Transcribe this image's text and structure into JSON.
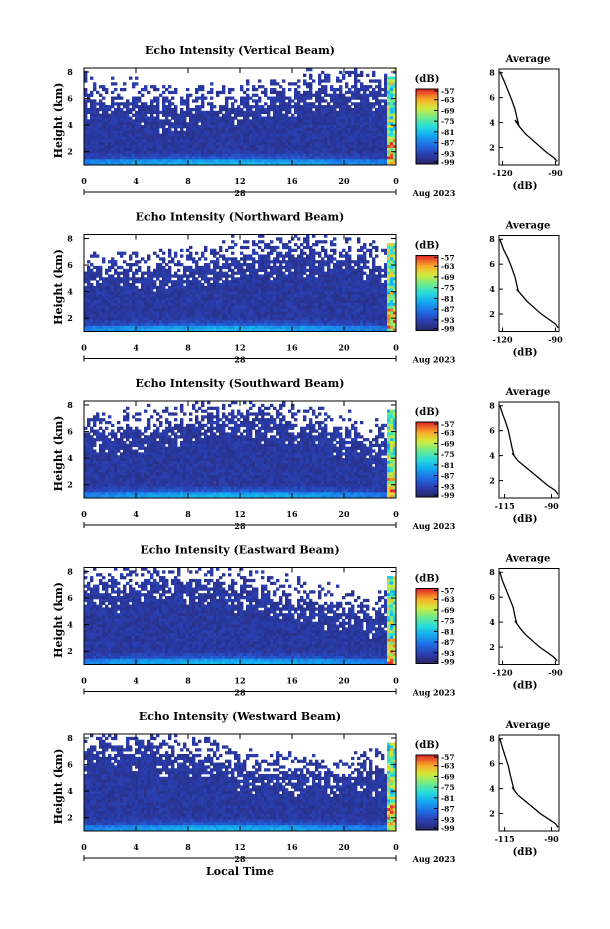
{
  "chart_data": [
    {
      "type": "heatmap",
      "title": "Echo Intensity (Vertical Beam)",
      "ylabel": "Height (km)",
      "y_ticks": [
        "2",
        "4",
        "6",
        "8"
      ],
      "x_ticks": [
        "0",
        "4",
        "8",
        "12",
        "16",
        "20",
        "0"
      ],
      "date_day": "28",
      "date_month": "Aug 2023",
      "colorbar": {
        "unit": "(dB)",
        "ticks": [
          "-57",
          "-63",
          "-69",
          "-75",
          "-81",
          "-87",
          "-93",
          "-99"
        ],
        "range": [
          -99,
          -57
        ]
      },
      "profile": {
        "title": "Average",
        "x_ticks": [
          "-120",
          "-90"
        ],
        "xlabel": "(dB)",
        "y_ticks": [
          "2",
          "4",
          "6",
          "8"
        ],
        "xlim": [
          -122,
          -88
        ],
        "ylim": [
          0.6,
          8.3
        ],
        "points": [
          [
            -121.5,
            8.1
          ],
          [
            -119,
            7.3
          ],
          [
            -117,
            6.6
          ],
          [
            -115,
            5.9
          ],
          [
            -113,
            5.1
          ],
          [
            -112,
            4.5
          ],
          [
            -111,
            3.9
          ],
          [
            -113,
            4.2
          ],
          [
            -110,
            3.6
          ],
          [
            -107,
            3.1
          ],
          [
            -103,
            2.6
          ],
          [
            -99,
            2.1
          ],
          [
            -95,
            1.6
          ],
          [
            -91,
            1.2
          ],
          [
            -89,
            0.9
          ]
        ]
      }
    },
    {
      "type": "heatmap",
      "title": "Echo Intensity (Northward Beam)",
      "ylabel": "Height (km)",
      "y_ticks": [
        "2",
        "4",
        "6",
        "8"
      ],
      "x_ticks": [
        "0",
        "4",
        "8",
        "12",
        "16",
        "20",
        "0"
      ],
      "date_day": "28",
      "date_month": "Aug 2023",
      "colorbar": {
        "unit": "(dB)",
        "ticks": [
          "-57",
          "-63",
          "-69",
          "-75",
          "-81",
          "-87",
          "-93",
          "-99"
        ],
        "range": [
          -99,
          -57
        ]
      },
      "profile": {
        "title": "Average",
        "x_ticks": [
          "-120",
          "-90"
        ],
        "xlabel": "(dB)",
        "y_ticks": [
          "2",
          "4",
          "6",
          "8"
        ],
        "xlim": [
          -122,
          -88
        ],
        "ylim": [
          0.6,
          8.3
        ],
        "points": [
          [
            -121.5,
            8.0
          ],
          [
            -119.5,
            7.2
          ],
          [
            -117,
            6.5
          ],
          [
            -115,
            5.8
          ],
          [
            -113,
            5.0
          ],
          [
            -112,
            4.4
          ],
          [
            -111,
            3.8
          ],
          [
            -112,
            4.0
          ],
          [
            -109,
            3.5
          ],
          [
            -106,
            3.0
          ],
          [
            -102,
            2.5
          ],
          [
            -98,
            2.0
          ],
          [
            -94,
            1.6
          ],
          [
            -90,
            1.2
          ],
          [
            -88.5,
            0.9
          ]
        ]
      }
    },
    {
      "type": "heatmap",
      "title": "Echo Intensity (Southward Beam)",
      "ylabel": "Height (km)",
      "y_ticks": [
        "2",
        "4",
        "6",
        "8"
      ],
      "x_ticks": [
        "0",
        "4",
        "8",
        "12",
        "16",
        "20",
        "0"
      ],
      "date_day": "28",
      "date_month": "Aug 2023",
      "colorbar": {
        "unit": "(dB)",
        "ticks": [
          "-57",
          "-63",
          "-69",
          "-75",
          "-81",
          "-87",
          "-93",
          "-99"
        ],
        "range": [
          -99,
          -57
        ]
      },
      "profile": {
        "title": "Average",
        "x_ticks": [
          "-115",
          "-90"
        ],
        "xlabel": "(dB)",
        "y_ticks": [
          "2",
          "4",
          "6",
          "8"
        ],
        "xlim": [
          -118,
          -86
        ],
        "ylim": [
          0.6,
          8.3
        ],
        "points": [
          [
            -117.5,
            8.0
          ],
          [
            -116,
            7.3
          ],
          [
            -114.5,
            6.7
          ],
          [
            -113,
            6.0
          ],
          [
            -112,
            5.3
          ],
          [
            -111,
            4.6
          ],
          [
            -110,
            4.0
          ],
          [
            -111,
            4.2
          ],
          [
            -108,
            3.6
          ],
          [
            -104,
            3.1
          ],
          [
            -100,
            2.6
          ],
          [
            -96,
            2.1
          ],
          [
            -92,
            1.6
          ],
          [
            -88,
            1.2
          ],
          [
            -86.5,
            0.9
          ]
        ]
      }
    },
    {
      "type": "heatmap",
      "title": "Echo Intensity (Eastward Beam)",
      "ylabel": "Height (km)",
      "y_ticks": [
        "2",
        "4",
        "6",
        "8"
      ],
      "x_ticks": [
        "0",
        "4",
        "8",
        "12",
        "16",
        "20",
        "0"
      ],
      "date_day": "28",
      "date_month": "Aug 2023",
      "colorbar": {
        "unit": "(dB)",
        "ticks": [
          "-57",
          "-63",
          "-69",
          "-75",
          "-81",
          "-87",
          "-93",
          "-99"
        ],
        "range": [
          -99,
          -57
        ]
      },
      "profile": {
        "title": "Average",
        "x_ticks": [
          "-120",
          "-90"
        ],
        "xlabel": "(dB)",
        "y_ticks": [
          "2",
          "4",
          "6",
          "8"
        ],
        "xlim": [
          -122,
          -88
        ],
        "ylim": [
          0.6,
          8.3
        ],
        "points": [
          [
            -121.5,
            8.0
          ],
          [
            -120,
            7.3
          ],
          [
            -118,
            6.6
          ],
          [
            -116,
            5.9
          ],
          [
            -114,
            5.2
          ],
          [
            -113,
            4.5
          ],
          [
            -112,
            3.9
          ],
          [
            -113,
            4.1
          ],
          [
            -110,
            3.5
          ],
          [
            -107,
            3.0
          ],
          [
            -103,
            2.5
          ],
          [
            -99,
            2.0
          ],
          [
            -95,
            1.6
          ],
          [
            -91,
            1.2
          ],
          [
            -89,
            0.9
          ]
        ]
      }
    },
    {
      "type": "heatmap",
      "title": "Echo Intensity (Westward Beam)",
      "ylabel": "Height (km)",
      "y_ticks": [
        "2",
        "4",
        "6",
        "8"
      ],
      "x_ticks": [
        "0",
        "4",
        "8",
        "12",
        "16",
        "20",
        "0"
      ],
      "date_day": "28",
      "date_month": "Aug 2023",
      "xlabel": "Local Time",
      "colorbar": {
        "unit": "(dB)",
        "ticks": [
          "-57",
          "-63",
          "-69",
          "-75",
          "-81",
          "-87",
          "-93",
          "-99"
        ],
        "range": [
          -99,
          -57
        ]
      },
      "profile": {
        "title": "Average",
        "x_ticks": [
          "-115",
          "-90"
        ],
        "xlabel": "(dB)",
        "y_ticks": [
          "2",
          "4",
          "6",
          "8"
        ],
        "xlim": [
          -118,
          -86
        ],
        "ylim": [
          0.6,
          8.3
        ],
        "points": [
          [
            -117.5,
            8.0
          ],
          [
            -116,
            7.2
          ],
          [
            -114.5,
            6.5
          ],
          [
            -113,
            5.8
          ],
          [
            -112,
            5.1
          ],
          [
            -111,
            4.5
          ],
          [
            -110,
            3.9
          ],
          [
            -111,
            4.1
          ],
          [
            -108,
            3.5
          ],
          [
            -104,
            3.0
          ],
          [
            -100,
            2.5
          ],
          [
            -96,
            2.0
          ],
          [
            -92,
            1.6
          ],
          [
            -88,
            1.2
          ],
          [
            -86.5,
            0.9
          ]
        ]
      }
    }
  ]
}
